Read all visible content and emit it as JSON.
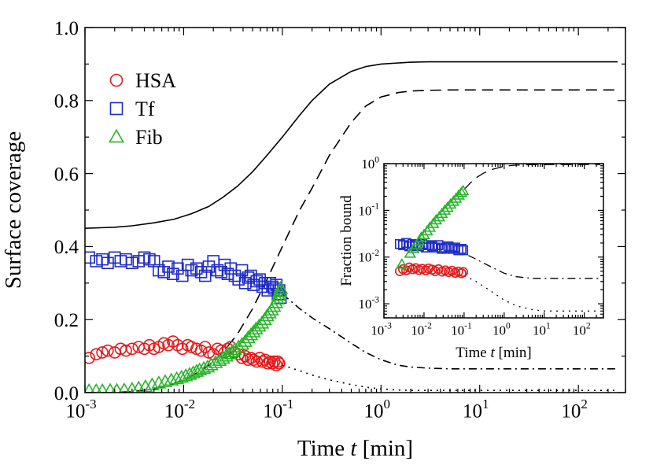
{
  "chart_data": [
    {
      "type": "scatter",
      "xlabel": "Time t [min]",
      "ylabel": "Surface coverage",
      "xscale": "log",
      "xlim": [
        0.001,
        300
      ],
      "ylim": [
        0,
        1.0
      ],
      "yticks": [
        "0.0",
        "0.2",
        "0.4",
        "0.6",
        "0.8",
        "1.0"
      ],
      "xticks": [
        {
          "base": "10",
          "exp": "-3",
          "value": 0.001
        },
        {
          "base": "10",
          "exp": "-2",
          "value": 0.01
        },
        {
          "base": "10",
          "exp": "-1",
          "value": 0.1
        },
        {
          "base": "10",
          "exp": "0",
          "value": 1
        },
        {
          "base": "10",
          "exp": "1",
          "value": 10
        },
        {
          "base": "10",
          "exp": "2",
          "value": 100
        }
      ],
      "legend": {
        "position": "top-left",
        "entries": [
          {
            "label": "HSA",
            "marker": "circle",
            "color": "#e41a1c"
          },
          {
            "label": "Tf",
            "marker": "square",
            "color": "#1f2bc7"
          },
          {
            "label": "Fib",
            "marker": "triangle",
            "color": "#2ab42a"
          }
        ]
      },
      "series": [
        {
          "name": "HSA",
          "marker": "circle",
          "color": "#e41a1c",
          "x": [
            0.0011,
            0.0013,
            0.0015,
            0.0017,
            0.002,
            0.0023,
            0.0026,
            0.003,
            0.0035,
            0.004,
            0.0045,
            0.005,
            0.0056,
            0.0063,
            0.007,
            0.0078,
            0.0087,
            0.0097,
            0.011,
            0.012,
            0.0135,
            0.015,
            0.0165,
            0.018,
            0.02,
            0.022,
            0.024,
            0.026,
            0.028,
            0.03,
            0.033,
            0.036,
            0.039,
            0.042,
            0.045,
            0.048,
            0.051,
            0.055,
            0.059,
            0.063,
            0.067,
            0.071,
            0.075,
            0.079,
            0.083,
            0.087,
            0.09,
            0.093
          ],
          "y": [
            0.095,
            0.105,
            0.11,
            0.115,
            0.11,
            0.12,
            0.115,
            0.12,
            0.125,
            0.12,
            0.13,
            0.12,
            0.125,
            0.135,
            0.13,
            0.14,
            0.13,
            0.12,
            0.13,
            0.125,
            0.12,
            0.115,
            0.125,
            0.11,
            0.105,
            0.12,
            0.115,
            0.11,
            0.12,
            0.125,
            0.11,
            0.105,
            0.095,
            0.1,
            0.09,
            0.095,
            0.09,
            0.085,
            0.095,
            0.085,
            0.09,
            0.08,
            0.085,
            0.08,
            0.085,
            0.075,
            0.085,
            0.08
          ]
        },
        {
          "name": "Tf",
          "marker": "square",
          "color": "#1f2bc7",
          "x": [
            0.0011,
            0.0013,
            0.0015,
            0.0017,
            0.002,
            0.0023,
            0.0026,
            0.003,
            0.0035,
            0.004,
            0.0045,
            0.005,
            0.0056,
            0.0063,
            0.007,
            0.0078,
            0.0087,
            0.0097,
            0.011,
            0.012,
            0.0135,
            0.015,
            0.0165,
            0.018,
            0.02,
            0.022,
            0.024,
            0.026,
            0.028,
            0.03,
            0.033,
            0.036,
            0.039,
            0.042,
            0.045,
            0.048,
            0.051,
            0.055,
            0.059,
            0.063,
            0.067,
            0.071,
            0.075,
            0.079,
            0.083,
            0.087,
            0.09,
            0.093,
            0.096
          ],
          "y": [
            0.37,
            0.36,
            0.365,
            0.355,
            0.37,
            0.36,
            0.365,
            0.355,
            0.36,
            0.37,
            0.365,
            0.36,
            0.335,
            0.33,
            0.345,
            0.325,
            0.34,
            0.32,
            0.35,
            0.335,
            0.34,
            0.33,
            0.32,
            0.345,
            0.36,
            0.335,
            0.33,
            0.35,
            0.325,
            0.34,
            0.32,
            0.31,
            0.335,
            0.3,
            0.315,
            0.32,
            0.295,
            0.305,
            0.31,
            0.29,
            0.3,
            0.28,
            0.3,
            0.29,
            0.285,
            0.295,
            0.27,
            0.28,
            0.26
          ]
        },
        {
          "name": "Fib",
          "marker": "triangle",
          "color": "#2ab42a",
          "x": [
            0.0011,
            0.0013,
            0.0015,
            0.0018,
            0.0021,
            0.0025,
            0.003,
            0.0035,
            0.0041,
            0.0048,
            0.0056,
            0.0065,
            0.0075,
            0.0085,
            0.0095,
            0.0105,
            0.0115,
            0.0125,
            0.0135,
            0.0145,
            0.016,
            0.0175,
            0.019,
            0.021,
            0.023,
            0.025,
            0.027,
            0.029,
            0.031,
            0.033,
            0.036,
            0.039,
            0.042,
            0.045,
            0.048,
            0.051,
            0.054,
            0.058,
            0.062,
            0.066,
            0.07,
            0.074,
            0.078,
            0.082,
            0.086,
            0.089,
            0.092,
            0.094,
            0.096
          ],
          "y": [
            0.005,
            0.005,
            0.005,
            0.006,
            0.006,
            0.007,
            0.009,
            0.012,
            0.016,
            0.021,
            0.026,
            0.03,
            0.034,
            0.038,
            0.042,
            0.046,
            0.05,
            0.054,
            0.058,
            0.062,
            0.066,
            0.07,
            0.076,
            0.082,
            0.088,
            0.094,
            0.1,
            0.106,
            0.112,
            0.118,
            0.125,
            0.132,
            0.14,
            0.15,
            0.158,
            0.166,
            0.174,
            0.182,
            0.19,
            0.2,
            0.21,
            0.218,
            0.226,
            0.236,
            0.246,
            0.256,
            0.266,
            0.276,
            0.285
          ]
        }
      ],
      "curves": [
        {
          "style": "solid",
          "x": [
            0.001,
            0.002,
            0.003,
            0.005,
            0.008,
            0.012,
            0.018,
            0.025,
            0.035,
            0.05,
            0.07,
            0.1,
            0.15,
            0.2,
            0.3,
            0.5,
            0.7,
            1,
            1.5,
            2,
            3,
            5,
            10,
            30,
            100,
            250
          ],
          "y": [
            0.45,
            0.453,
            0.457,
            0.465,
            0.475,
            0.49,
            0.51,
            0.535,
            0.565,
            0.605,
            0.65,
            0.7,
            0.76,
            0.8,
            0.845,
            0.88,
            0.893,
            0.9,
            0.903,
            0.905,
            0.906,
            0.906,
            0.906,
            0.906,
            0.906,
            0.906
          ]
        },
        {
          "style": "dashed",
          "x": [
            0.001,
            0.002,
            0.003,
            0.005,
            0.008,
            0.012,
            0.018,
            0.025,
            0.035,
            0.05,
            0.07,
            0.1,
            0.15,
            0.2,
            0.3,
            0.5,
            0.7,
            1,
            1.5,
            2,
            3,
            5,
            10,
            30,
            100,
            250
          ],
          "y": [
            0.0,
            0.0,
            0.003,
            0.01,
            0.025,
            0.045,
            0.075,
            0.11,
            0.16,
            0.23,
            0.31,
            0.4,
            0.5,
            0.56,
            0.65,
            0.74,
            0.785,
            0.81,
            0.822,
            0.826,
            0.828,
            0.829,
            0.829,
            0.829,
            0.829,
            0.829
          ]
        },
        {
          "style": "dashdot",
          "x": [
            0.1,
            0.15,
            0.2,
            0.3,
            0.5,
            0.7,
            1,
            1.5,
            2,
            3,
            5,
            10,
            30,
            100,
            250
          ],
          "y": [
            0.27,
            0.23,
            0.205,
            0.175,
            0.135,
            0.11,
            0.09,
            0.075,
            0.07,
            0.067,
            0.065,
            0.065,
            0.065,
            0.065,
            0.065
          ]
        },
        {
          "style": "dotted",
          "x": [
            0.1,
            0.15,
            0.2,
            0.3,
            0.5,
            0.7,
            1,
            1.5,
            2,
            3,
            5,
            10,
            30,
            100,
            250
          ],
          "y": [
            0.075,
            0.06,
            0.048,
            0.035,
            0.022,
            0.015,
            0.01,
            0.007,
            0.006,
            0.006,
            0.006,
            0.006,
            0.006,
            0.006,
            0.006
          ]
        }
      ]
    },
    {
      "type": "scatter",
      "inset": true,
      "xlabel": "Time t [min]",
      "ylabel": "Fraction bound",
      "xscale": "log",
      "yscale": "log",
      "xlim": [
        0.001,
        300
      ],
      "ylim": [
        0.0005,
        1
      ],
      "xticks": [
        {
          "base": "10",
          "exp": "-3",
          "value": 0.001
        },
        {
          "base": "10",
          "exp": "-2",
          "value": 0.01
        },
        {
          "base": "10",
          "exp": "-1",
          "value": 0.1
        },
        {
          "base": "10",
          "exp": "0",
          "value": 1
        },
        {
          "base": "10",
          "exp": "1",
          "value": 10
        },
        {
          "base": "10",
          "exp": "2",
          "value": 100
        }
      ],
      "yticks": [
        {
          "base": "10",
          "exp": "-3",
          "value": 0.001
        },
        {
          "base": "10",
          "exp": "-2",
          "value": 0.01
        },
        {
          "base": "10",
          "exp": "-1",
          "value": 0.1
        },
        {
          "base": "10",
          "exp": "0",
          "value": 1
        }
      ],
      "series": [
        {
          "name": "HSA",
          "marker": "circle",
          "color": "#e41a1c",
          "x": [
            0.0025,
            0.003,
            0.0036,
            0.0043,
            0.0052,
            0.0062,
            0.0075,
            0.009,
            0.011,
            0.013,
            0.016,
            0.019,
            0.023,
            0.028,
            0.034,
            0.041,
            0.05,
            0.06,
            0.072,
            0.086,
            0.095
          ],
          "y": [
            0.005,
            0.0055,
            0.0052,
            0.006,
            0.0055,
            0.0058,
            0.0053,
            0.0056,
            0.0052,
            0.0057,
            0.0054,
            0.005,
            0.0055,
            0.0049,
            0.0052,
            0.0048,
            0.0051,
            0.0046,
            0.0049,
            0.0045,
            0.0048
          ]
        },
        {
          "name": "Tf",
          "marker": "square",
          "color": "#1f2bc7",
          "x": [
            0.0025,
            0.003,
            0.0036,
            0.0043,
            0.0052,
            0.0062,
            0.0075,
            0.009,
            0.011,
            0.013,
            0.016,
            0.019,
            0.023,
            0.028,
            0.034,
            0.041,
            0.05,
            0.06,
            0.072,
            0.086,
            0.095
          ],
          "y": [
            0.019,
            0.018,
            0.02,
            0.017,
            0.019,
            0.018,
            0.017,
            0.019,
            0.016,
            0.018,
            0.017,
            0.016,
            0.018,
            0.015,
            0.016,
            0.017,
            0.015,
            0.016,
            0.014,
            0.015,
            0.014
          ]
        },
        {
          "name": "Fib",
          "marker": "triangle",
          "color": "#2ab42a",
          "x": [
            0.0028,
            0.0045,
            0.0055,
            0.0065,
            0.0075,
            0.0085,
            0.01,
            0.012,
            0.014,
            0.017,
            0.02,
            0.024,
            0.028,
            0.033,
            0.039,
            0.046,
            0.054,
            0.063,
            0.074,
            0.086,
            0.095
          ],
          "y": [
            0.007,
            0.012,
            0.015,
            0.018,
            0.022,
            0.026,
            0.03,
            0.036,
            0.043,
            0.052,
            0.062,
            0.072,
            0.085,
            0.1,
            0.115,
            0.135,
            0.155,
            0.18,
            0.21,
            0.24,
            0.26
          ]
        }
      ],
      "curves": [
        {
          "style": "dashed",
          "x": [
            0.1,
            0.15,
            0.2,
            0.3,
            0.5,
            1,
            2,
            5,
            20,
            100,
            250
          ],
          "y": [
            0.28,
            0.4,
            0.5,
            0.62,
            0.75,
            0.88,
            0.93,
            0.95,
            0.96,
            0.96,
            0.96
          ]
        },
        {
          "style": "dashdot",
          "x": [
            0.05,
            0.1,
            0.2,
            0.5,
            1,
            2,
            5,
            10,
            30,
            100,
            250
          ],
          "y": [
            0.014,
            0.012,
            0.009,
            0.006,
            0.0045,
            0.0038,
            0.0035,
            0.0035,
            0.0035,
            0.0035,
            0.0035
          ]
        },
        {
          "style": "dotted",
          "x": [
            0.05,
            0.1,
            0.2,
            0.5,
            1,
            2,
            5,
            10,
            30,
            100,
            250
          ],
          "y": [
            0.0045,
            0.004,
            0.003,
            0.0018,
            0.0012,
            0.0009,
            0.00075,
            0.0007,
            0.0007,
            0.0007,
            0.0007
          ]
        }
      ]
    }
  ]
}
